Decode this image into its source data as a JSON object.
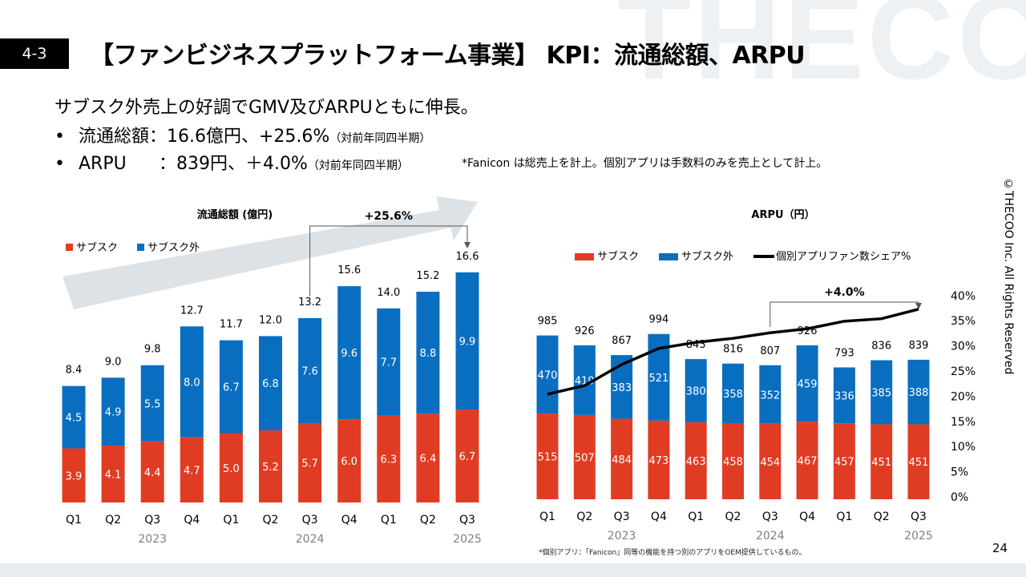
{
  "header": {
    "section": "4-3",
    "title": "【ファンビジネスプラットフォーム事業】 KPI：流通総額、ARPU",
    "watermark": "THECOO"
  },
  "summary": {
    "headline": "サブスク外売上の好調でGMV及びARPUともに伸長。",
    "bullets": [
      {
        "label": "流通総額",
        "value": "：16.6億円、+25.6%",
        "note": "（対前年同四半期）"
      },
      {
        "label": "ARPU",
        "value": "：839円、＋4.0%",
        "note": "（対前年同四半期）"
      }
    ],
    "side_note": "*Fanicon は総売上を計上。個別アプリは手数料のみを売上として計上。"
  },
  "copyright": "©THECOO Inc. All Rights Reserved",
  "page_number": "24",
  "footnote": "*個別アプリ：「Fanicon」同等の機能を持つ別のアプリをOEM提供しているもの。",
  "colors": {
    "subscription": "#e03c24",
    "non_subscription": "#0a6ec0",
    "line": "#000000",
    "arrow_bg": "#dde2e6",
    "year_label": "#808080"
  },
  "chart_data": [
    {
      "type": "bar",
      "stacked": true,
      "title": "流通総額 (億円)",
      "categories": [
        "Q1",
        "Q2",
        "Q3",
        "Q4",
        "Q1",
        "Q2",
        "Q3",
        "Q4",
        "Q1",
        "Q2",
        "Q3"
      ],
      "year_labels": [
        {
          "label": "2023",
          "span": [
            0,
            3
          ]
        },
        {
          "label": "2024",
          "span": [
            4,
            7
          ]
        },
        {
          "label": "2025",
          "span": [
            8,
            10
          ]
        }
      ],
      "legend": [
        "サブスク",
        "サブスク外"
      ],
      "legend_position": "top-left",
      "series": [
        {
          "name": "サブスク",
          "values": [
            3.9,
            4.1,
            4.4,
            4.7,
            5.0,
            5.2,
            5.7,
            6.0,
            6.3,
            6.4,
            6.7
          ]
        },
        {
          "name": "サブスク外",
          "values": [
            4.5,
            4.9,
            5.5,
            8.0,
            6.7,
            6.8,
            7.6,
            9.6,
            7.7,
            8.8,
            9.9
          ]
        }
      ],
      "totals": [
        "8.4",
        "9.0",
        "9.8",
        "12.7",
        "11.7",
        "12.0",
        "13.2",
        "15.6",
        "14.0",
        "15.2",
        "16.6"
      ],
      "annotation": {
        "text": "+25.6%",
        "from_index": 6,
        "to_index": 10
      },
      "ylim": [
        0,
        17
      ]
    },
    {
      "type": "bar",
      "stacked": true,
      "title": "ARPU（円）",
      "categories": [
        "Q1",
        "Q2",
        "Q3",
        "Q4",
        "Q1",
        "Q2",
        "Q3",
        "Q4",
        "Q1",
        "Q2",
        "Q3"
      ],
      "year_labels": [
        {
          "label": "2023",
          "span": [
            0,
            3
          ]
        },
        {
          "label": "2024",
          "span": [
            4,
            7
          ]
        },
        {
          "label": "2025",
          "span": [
            8,
            10
          ]
        }
      ],
      "legend": [
        "サブスク",
        "サブスク外",
        "個別アプリファン数シェア%"
      ],
      "legend_position": "top",
      "series": [
        {
          "name": "サブスク",
          "values": [
            515,
            507,
            484,
            473,
            463,
            458,
            454,
            467,
            457,
            451,
            451
          ]
        },
        {
          "name": "サブスク外",
          "values": [
            470,
            419,
            383,
            521,
            380,
            358,
            352,
            459,
            336,
            385,
            388
          ]
        },
        {
          "name": "個別アプリファン数シェア%",
          "type": "line",
          "axis": "right",
          "values": [
            20.4,
            22.1,
            26.3,
            29.5,
            30.7,
            31.5,
            32.6,
            33.4,
            34.9,
            35.4,
            37.3
          ]
        }
      ],
      "totals": [
        "985",
        "926",
        "867",
        "994",
        "843",
        "816",
        "807",
        "926",
        "793",
        "836",
        "839"
      ],
      "annotation": {
        "text": "+4.0%",
        "from_index": 6,
        "to_index": 10
      },
      "ylim": [
        0,
        1550
      ],
      "y2_ticks": [
        "0%",
        "5%",
        "10%",
        "15%",
        "20%",
        "25%",
        "30%",
        "35%",
        "40%"
      ],
      "y2lim": [
        0,
        40
      ]
    }
  ]
}
